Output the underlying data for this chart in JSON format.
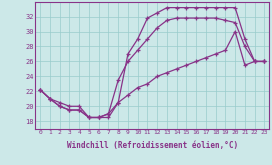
{
  "xlabel": "Windchill (Refroidissement éolien,°C)",
  "xlim": [
    -0.5,
    23.5
  ],
  "ylim": [
    17,
    34
  ],
  "xticks": [
    0,
    1,
    2,
    3,
    4,
    5,
    6,
    7,
    8,
    9,
    10,
    11,
    12,
    13,
    14,
    15,
    16,
    17,
    18,
    19,
    20,
    21,
    22,
    23
  ],
  "yticks": [
    18,
    20,
    22,
    24,
    26,
    28,
    30,
    32
  ],
  "bg_color": "#cce8e8",
  "line_color": "#883388",
  "grid_color": "#99cccc",
  "line1_x": [
    0,
    1,
    2,
    3,
    4,
    5,
    6,
    7,
    8,
    9,
    10,
    11,
    12,
    13,
    14,
    15,
    16,
    17,
    18,
    19,
    20,
    21,
    22,
    23
  ],
  "line1_y": [
    22.2,
    21.0,
    20.0,
    19.5,
    19.5,
    18.5,
    18.5,
    18.5,
    20.5,
    27.0,
    29.0,
    31.8,
    32.5,
    33.2,
    33.2,
    33.2,
    33.2,
    33.2,
    33.2,
    33.2,
    33.2,
    29.0,
    26.0,
    26.0
  ],
  "line2_x": [
    0,
    1,
    2,
    3,
    4,
    5,
    6,
    7,
    8,
    9,
    10,
    11,
    12,
    13,
    14,
    15,
    16,
    17,
    18,
    19,
    20,
    21,
    22,
    23
  ],
  "line2_y": [
    22.2,
    21.0,
    20.0,
    19.5,
    19.5,
    18.5,
    18.5,
    19.0,
    23.5,
    26.0,
    27.5,
    29.0,
    30.5,
    31.5,
    31.8,
    31.8,
    31.8,
    31.8,
    31.8,
    31.5,
    31.2,
    28.0,
    26.0,
    26.0
  ],
  "line3_x": [
    0,
    1,
    2,
    3,
    4,
    5,
    6,
    7,
    8,
    9,
    10,
    11,
    12,
    13,
    14,
    15,
    16,
    17,
    18,
    19,
    20,
    21,
    22,
    23
  ],
  "line3_y": [
    22.2,
    21.0,
    20.5,
    20.0,
    20.0,
    18.5,
    18.5,
    19.0,
    20.5,
    21.5,
    22.5,
    23.0,
    24.0,
    24.5,
    25.0,
    25.5,
    26.0,
    26.5,
    27.0,
    27.5,
    30.0,
    25.5,
    26.0,
    26.0
  ]
}
